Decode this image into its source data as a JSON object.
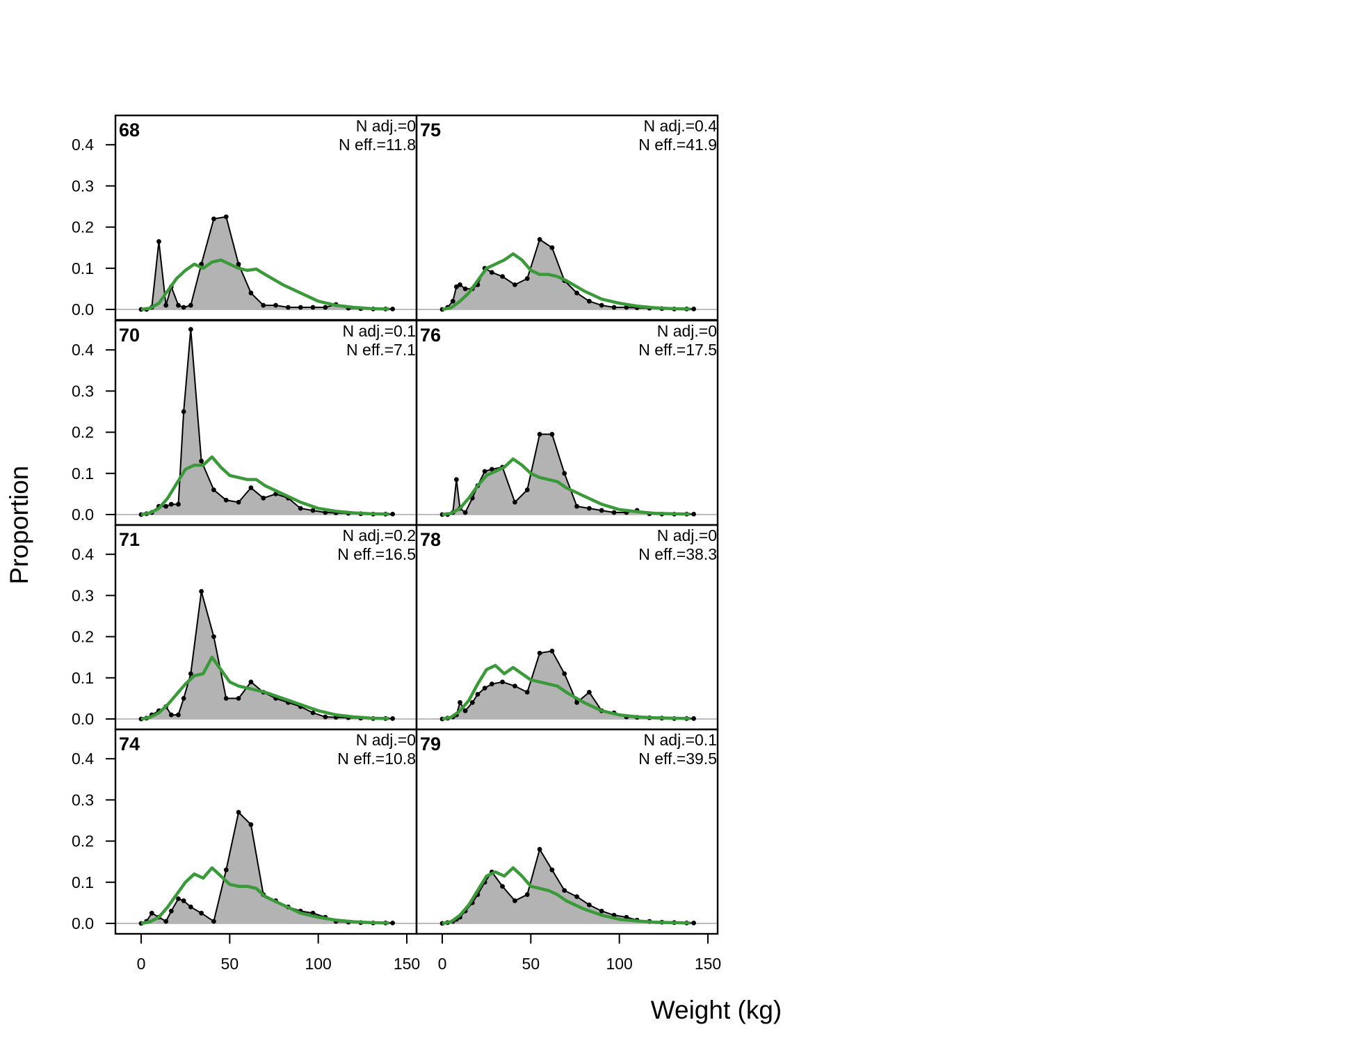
{
  "chart_data": {
    "type": "area",
    "xlabel": "Weight (kg)",
    "ylabel": "Proportion",
    "xlim": [
      0,
      150
    ],
    "ylim": [
      0,
      0.45
    ],
    "x_ticks": [
      0,
      50,
      100,
      150
    ],
    "y_ticks": [
      0.0,
      0.1,
      0.2,
      0.3,
      0.4
    ],
    "y_tick_labels": [
      "0.0",
      "0.1",
      "0.2",
      "0.3",
      "0.4"
    ],
    "x_tick_labels": [
      "0",
      "50",
      "100",
      "150"
    ],
    "x": [
      0,
      2,
      4,
      6,
      8,
      10,
      12,
      14,
      16,
      18,
      20,
      22,
      24,
      26,
      28,
      30,
      32,
      34,
      36,
      38,
      40,
      42,
      44,
      46,
      48,
      50,
      52,
      54,
      56,
      58,
      60,
      62,
      64,
      66,
      68,
      70,
      72,
      74,
      76,
      78,
      80,
      82,
      84,
      86,
      88,
      90,
      92,
      94,
      96,
      98,
      100,
      102,
      104,
      106,
      108,
      110,
      112,
      114,
      116,
      118,
      120,
      122,
      124,
      126,
      128,
      130,
      132,
      134,
      136,
      138,
      140,
      142,
      144,
      146
    ],
    "colors": {
      "observed_fill": "#b3b3b3",
      "observed_line": "#000000",
      "expected_line": "#3a9a3a"
    },
    "panels": [
      {
        "label": "68",
        "n_adj": "N adj.=0",
        "n_eff": "N eff.=11.8",
        "obs_x": [
          0,
          3,
          6,
          10,
          14,
          17,
          21,
          24,
          28,
          34,
          41,
          48,
          55,
          62,
          69,
          76,
          83,
          90,
          97,
          104,
          110,
          117,
          124,
          131,
          138,
          142
        ],
        "obs_y": [
          0,
          0,
          0.005,
          0.165,
          0.01,
          0.055,
          0.01,
          0.005,
          0.01,
          0.11,
          0.22,
          0.225,
          0.11,
          0.04,
          0.01,
          0.01,
          0.005,
          0.005,
          0.005,
          0.005,
          0.012,
          0.003,
          0.002,
          0.001,
          0.001,
          0.001
        ],
        "exp_x": [
          0,
          5,
          10,
          15,
          20,
          25,
          30,
          35,
          40,
          45,
          50,
          55,
          60,
          65,
          70,
          80,
          90,
          100,
          110,
          120,
          130,
          140
        ],
        "exp_y": [
          0,
          0.003,
          0.015,
          0.045,
          0.075,
          0.095,
          0.11,
          0.1,
          0.115,
          0.12,
          0.11,
          0.1,
          0.095,
          0.098,
          0.085,
          0.06,
          0.04,
          0.02,
          0.01,
          0.005,
          0.002,
          0.001
        ]
      },
      {
        "label": "75",
        "n_adj": "N adj.=0.4",
        "n_eff": "N eff.=41.9",
        "obs_x": [
          0,
          3,
          6,
          8,
          10,
          13,
          17,
          20,
          24,
          28,
          34,
          41,
          48,
          55,
          62,
          69,
          76,
          83,
          90,
          97,
          104,
          110,
          117,
          124,
          131,
          138,
          142
        ],
        "obs_y": [
          0,
          0.005,
          0.02,
          0.055,
          0.06,
          0.05,
          0.05,
          0.06,
          0.1,
          0.09,
          0.08,
          0.06,
          0.075,
          0.17,
          0.15,
          0.07,
          0.04,
          0.02,
          0.01,
          0.005,
          0.005,
          0.004,
          0.003,
          0.002,
          0.001,
          0.001,
          0.001
        ],
        "exp_x": [
          0,
          5,
          10,
          15,
          20,
          25,
          30,
          35,
          40,
          45,
          50,
          55,
          60,
          65,
          70,
          80,
          90,
          100,
          110,
          120,
          130,
          140
        ],
        "exp_y": [
          0,
          0.004,
          0.02,
          0.04,
          0.07,
          0.1,
          0.11,
          0.12,
          0.135,
          0.12,
          0.095,
          0.085,
          0.085,
          0.08,
          0.07,
          0.045,
          0.025,
          0.015,
          0.008,
          0.004,
          0.002,
          0.001
        ]
      },
      {
        "label": "70",
        "n_adj": "N adj.=0.1",
        "n_eff": "N eff.=7.1",
        "obs_x": [
          0,
          3,
          6,
          10,
          14,
          17,
          21,
          24,
          28,
          34,
          41,
          48,
          55,
          62,
          69,
          76,
          83,
          90,
          97,
          104,
          110,
          117,
          124,
          131,
          138,
          142
        ],
        "obs_y": [
          0,
          0.002,
          0.005,
          0.02,
          0.02,
          0.025,
          0.025,
          0.25,
          0.45,
          0.13,
          0.06,
          0.035,
          0.03,
          0.065,
          0.04,
          0.05,
          0.04,
          0.015,
          0.01,
          0.005,
          0.004,
          0.003,
          0.002,
          0.001,
          0.001,
          0.001
        ],
        "exp_x": [
          0,
          5,
          10,
          15,
          20,
          25,
          30,
          35,
          40,
          45,
          50,
          55,
          60,
          65,
          70,
          80,
          90,
          100,
          110,
          120,
          130,
          140
        ],
        "exp_y": [
          0,
          0.004,
          0.015,
          0.04,
          0.075,
          0.11,
          0.12,
          0.12,
          0.14,
          0.115,
          0.095,
          0.09,
          0.085,
          0.085,
          0.07,
          0.05,
          0.03,
          0.015,
          0.008,
          0.004,
          0.002,
          0.001
        ]
      },
      {
        "label": "76",
        "n_adj": "N adj.=0",
        "n_eff": "N eff.=17.5",
        "obs_x": [
          0,
          3,
          6,
          8,
          10,
          13,
          17,
          20,
          24,
          28,
          34,
          41,
          48,
          55,
          62,
          69,
          76,
          83,
          90,
          97,
          104,
          110,
          117,
          124,
          131,
          138,
          142
        ],
        "obs_y": [
          0,
          0,
          0.005,
          0.085,
          0.015,
          0.005,
          0.04,
          0.07,
          0.105,
          0.11,
          0.115,
          0.03,
          0.06,
          0.195,
          0.195,
          0.1,
          0.02,
          0.015,
          0.01,
          0.005,
          0.005,
          0.01,
          0.002,
          0.001,
          0.001,
          0.001,
          0.001
        ],
        "exp_x": [
          0,
          5,
          10,
          15,
          20,
          25,
          30,
          35,
          40,
          45,
          50,
          55,
          60,
          65,
          70,
          80,
          90,
          100,
          110,
          120,
          130,
          140
        ],
        "exp_y": [
          0,
          0.003,
          0.015,
          0.04,
          0.07,
          0.095,
          0.105,
          0.115,
          0.135,
          0.12,
          0.1,
          0.09,
          0.085,
          0.08,
          0.065,
          0.045,
          0.025,
          0.012,
          0.007,
          0.003,
          0.002,
          0.001
        ]
      },
      {
        "label": "71",
        "n_adj": "N adj.=0.2",
        "n_eff": "N eff.=16.5",
        "obs_x": [
          0,
          3,
          6,
          10,
          14,
          17,
          21,
          24,
          28,
          34,
          41,
          48,
          55,
          62,
          69,
          76,
          83,
          90,
          97,
          104,
          110,
          117,
          124,
          131,
          138,
          142
        ],
        "obs_y": [
          0,
          0.002,
          0.01,
          0.02,
          0.03,
          0.01,
          0.01,
          0.05,
          0.11,
          0.31,
          0.2,
          0.05,
          0.05,
          0.09,
          0.065,
          0.05,
          0.04,
          0.03,
          0.015,
          0.005,
          0.004,
          0.003,
          0.002,
          0.001,
          0.001,
          0.001
        ],
        "exp_x": [
          0,
          5,
          10,
          15,
          20,
          25,
          30,
          35,
          40,
          45,
          50,
          55,
          60,
          65,
          70,
          80,
          90,
          100,
          110,
          120,
          130,
          140
        ],
        "exp_y": [
          0,
          0.004,
          0.015,
          0.035,
          0.06,
          0.085,
          0.105,
          0.11,
          0.15,
          0.12,
          0.09,
          0.08,
          0.075,
          0.07,
          0.065,
          0.05,
          0.035,
          0.02,
          0.01,
          0.005,
          0.002,
          0.001
        ]
      },
      {
        "label": "78",
        "n_adj": "N adj.=0",
        "n_eff": "N eff.=38.3",
        "obs_x": [
          0,
          3,
          6,
          8,
          10,
          13,
          17,
          20,
          24,
          28,
          34,
          41,
          48,
          55,
          62,
          69,
          76,
          83,
          90,
          97,
          104,
          110,
          117,
          124,
          131,
          138,
          142
        ],
        "obs_y": [
          0,
          0.002,
          0.005,
          0.01,
          0.04,
          0.02,
          0.04,
          0.06,
          0.075,
          0.085,
          0.09,
          0.08,
          0.065,
          0.16,
          0.165,
          0.11,
          0.04,
          0.065,
          0.02,
          0.015,
          0.005,
          0.004,
          0.003,
          0.002,
          0.001,
          0.001,
          0.001
        ],
        "exp_x": [
          0,
          5,
          10,
          15,
          20,
          25,
          30,
          35,
          40,
          45,
          50,
          55,
          60,
          65,
          70,
          80,
          90,
          100,
          110,
          120,
          130,
          140
        ],
        "exp_y": [
          0,
          0.004,
          0.02,
          0.045,
          0.085,
          0.12,
          0.13,
          0.11,
          0.125,
          0.11,
          0.095,
          0.09,
          0.085,
          0.08,
          0.065,
          0.04,
          0.02,
          0.01,
          0.005,
          0.003,
          0.002,
          0.001
        ]
      },
      {
        "label": "74",
        "n_adj": "N adj.=0",
        "n_eff": "N eff.=10.8",
        "obs_x": [
          0,
          3,
          6,
          10,
          14,
          17,
          21,
          24,
          28,
          34,
          41,
          48,
          55,
          62,
          69,
          76,
          83,
          90,
          97,
          104,
          110,
          117,
          124,
          131,
          138,
          142
        ],
        "obs_y": [
          0,
          0.005,
          0.025,
          0.015,
          0.005,
          0.03,
          0.06,
          0.055,
          0.04,
          0.025,
          0.005,
          0.13,
          0.27,
          0.24,
          0.07,
          0.055,
          0.04,
          0.03,
          0.025,
          0.015,
          0.005,
          0.003,
          0.002,
          0.001,
          0.001,
          0.001
        ],
        "exp_x": [
          0,
          5,
          10,
          15,
          20,
          25,
          30,
          35,
          40,
          45,
          50,
          55,
          60,
          65,
          70,
          80,
          90,
          100,
          110,
          120,
          130,
          140
        ],
        "exp_y": [
          0,
          0.004,
          0.015,
          0.04,
          0.07,
          0.1,
          0.12,
          0.11,
          0.135,
          0.115,
          0.095,
          0.09,
          0.09,
          0.085,
          0.065,
          0.045,
          0.025,
          0.015,
          0.008,
          0.004,
          0.002,
          0.001
        ]
      },
      {
        "label": "79",
        "n_adj": "N adj.=0.1",
        "n_eff": "N eff.=39.5",
        "obs_x": [
          0,
          3,
          6,
          8,
          10,
          13,
          17,
          20,
          24,
          28,
          34,
          41,
          48,
          55,
          62,
          69,
          76,
          83,
          90,
          97,
          104,
          110,
          117,
          124,
          131,
          138,
          142
        ],
        "obs_y": [
          0,
          0.002,
          0.005,
          0.01,
          0.015,
          0.03,
          0.05,
          0.07,
          0.1,
          0.125,
          0.09,
          0.055,
          0.07,
          0.18,
          0.13,
          0.08,
          0.065,
          0.045,
          0.03,
          0.02,
          0.015,
          0.008,
          0.005,
          0.003,
          0.002,
          0.001,
          0.001
        ],
        "exp_x": [
          0,
          5,
          10,
          15,
          20,
          25,
          30,
          35,
          40,
          45,
          50,
          55,
          60,
          65,
          70,
          80,
          90,
          100,
          110,
          120,
          130,
          140
        ],
        "exp_y": [
          0,
          0.004,
          0.02,
          0.045,
          0.08,
          0.115,
          0.125,
          0.115,
          0.135,
          0.115,
          0.09,
          0.085,
          0.08,
          0.07,
          0.055,
          0.035,
          0.02,
          0.01,
          0.006,
          0.003,
          0.002,
          0.001
        ]
      }
    ]
  }
}
